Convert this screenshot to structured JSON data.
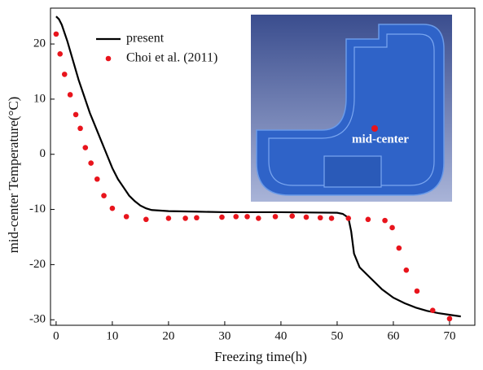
{
  "chart_data": {
    "type": "line",
    "x_label": "Freezing time(h)",
    "y_label": "mid-center Temperature(°C)",
    "xlim": [
      -1,
      74.5
    ],
    "ylim": [
      -31,
      26.5
    ],
    "xticks": [
      0,
      10,
      20,
      30,
      40,
      50,
      60,
      70
    ],
    "yticks": [
      20,
      10,
      0,
      -10,
      -20,
      -30
    ],
    "legend": "upper left",
    "inset_label": "mid-center",
    "series": [
      {
        "name": "present",
        "color": "#000000",
        "style": "line",
        "x": [
          0,
          0.5,
          1,
          2,
          3,
          4,
          5,
          6,
          7,
          8,
          9,
          10,
          11,
          12,
          13,
          14,
          15,
          16,
          17,
          20,
          25,
          30,
          40,
          50,
          51,
          52,
          52.5,
          53,
          54,
          56,
          58,
          60,
          62,
          64,
          66,
          68,
          70,
          72
        ],
        "values": [
          25,
          24.5,
          23.5,
          20.5,
          17,
          13.5,
          10.5,
          7.5,
          5,
          2.5,
          0,
          -2.5,
          -4.5,
          -6,
          -7.5,
          -8.5,
          -9.3,
          -9.8,
          -10.1,
          -10.3,
          -10.4,
          -10.5,
          -10.5,
          -10.6,
          -10.8,
          -11.5,
          -14,
          -18,
          -20.5,
          -22.5,
          -24.5,
          -26,
          -27,
          -27.8,
          -28.4,
          -28.8,
          -29.1,
          -29.4
        ]
      },
      {
        "name": "Choi et al. (2011)",
        "color": "#e8141c",
        "style": "marker",
        "x": [
          0,
          0.7,
          1.5,
          2.5,
          3.5,
          4.3,
          5.2,
          6.2,
          7.3,
          8.5,
          10,
          12.5,
          16,
          20,
          23,
          25,
          29.5,
          32,
          34,
          36,
          39,
          42,
          44.5,
          47,
          49,
          52,
          55.5,
          58.5,
          59.8,
          61,
          62.3,
          64.2,
          67,
          70
        ],
        "values": [
          21.8,
          18.2,
          14.5,
          10.8,
          7.2,
          4.7,
          1.2,
          -1.6,
          -4.5,
          -7.5,
          -9.8,
          -11.3,
          -11.8,
          -11.6,
          -11.6,
          -11.5,
          -11.4,
          -11.3,
          -11.3,
          -11.6,
          -11.3,
          -11.2,
          -11.4,
          -11.5,
          -11.6,
          -11.6,
          -11.8,
          -12,
          -13.3,
          -17,
          -21,
          -24.8,
          -28.3,
          -29.8
        ]
      }
    ]
  }
}
